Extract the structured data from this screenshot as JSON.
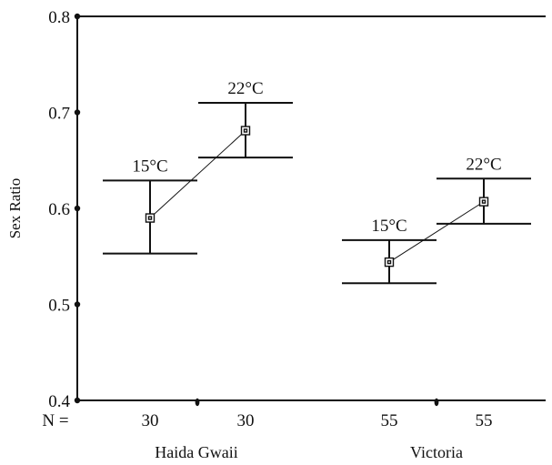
{
  "chart_data": {
    "type": "scatter",
    "title": "",
    "xlabel": "",
    "ylabel": "Sex Ratio",
    "ylim": [
      0.4,
      0.8
    ],
    "yticks": [
      "0.4",
      "0.5",
      "0.6",
      "0.7",
      "0.8"
    ],
    "n_prefix": "N =",
    "groups": [
      {
        "name": "Haida Gwaii",
        "points": [
          {
            "condition": "15°C",
            "n": "30",
            "mean": 0.59,
            "lower": 0.553,
            "upper": 0.629
          },
          {
            "condition": "22°C",
            "n": "30",
            "mean": 0.681,
            "lower": 0.653,
            "upper": 0.71
          }
        ]
      },
      {
        "name": "Victoria",
        "points": [
          {
            "condition": "15°C",
            "n": "55",
            "mean": 0.544,
            "lower": 0.522,
            "upper": 0.567
          },
          {
            "condition": "22°C",
            "n": "55",
            "mean": 0.607,
            "lower": 0.584,
            "upper": 0.631
          }
        ]
      }
    ]
  }
}
